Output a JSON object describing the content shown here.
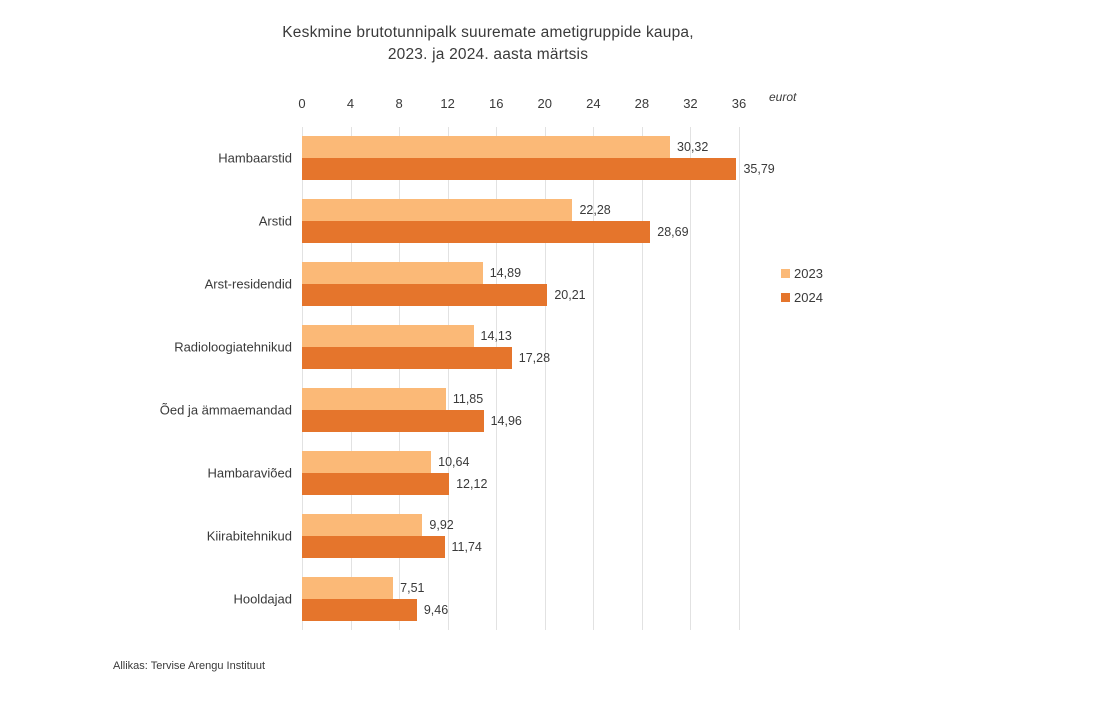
{
  "chart_data": {
    "type": "bar",
    "orientation": "horizontal",
    "title": "Keskmine brutotunnipalk suuremate ametigruppide kaupa,\n2023. ja 2024. aasta märtsis",
    "unit_label": "eurot",
    "categories": [
      "Hambaarstid",
      "Arstid",
      "Arst-residendid",
      "Radioloogiatehnikud",
      "Õed ja ämmaemandad",
      "Hambaraviõed",
      "Kiirabitehnikud",
      "Hooldajad"
    ],
    "series": [
      {
        "name": "2023",
        "color": "#FBB977",
        "values": [
          30.32,
          22.28,
          14.89,
          14.13,
          11.85,
          10.64,
          9.92,
          7.51
        ],
        "labels": [
          "30,32",
          "22,28",
          "14,89",
          "14,13",
          "11,85",
          "10,64",
          "9,92",
          "7,51"
        ]
      },
      {
        "name": "2024",
        "color": "#E5752C",
        "values": [
          35.79,
          28.69,
          20.21,
          17.28,
          14.96,
          12.12,
          11.74,
          9.46
        ],
        "labels": [
          "35,79",
          "28,69",
          "20,21",
          "17,28",
          "14,96",
          "12,12",
          "11,74",
          "9,46"
        ]
      }
    ],
    "x_ticks": [
      0,
      4,
      8,
      12,
      16,
      20,
      24,
      28,
      32,
      36
    ],
    "x_max": 36,
    "grid": true,
    "legend_position": "right",
    "gridline_color": "#e2e2e2",
    "text_color": "#3a3a3a",
    "source": "Allikas: Tervise Arengu Instituut"
  }
}
